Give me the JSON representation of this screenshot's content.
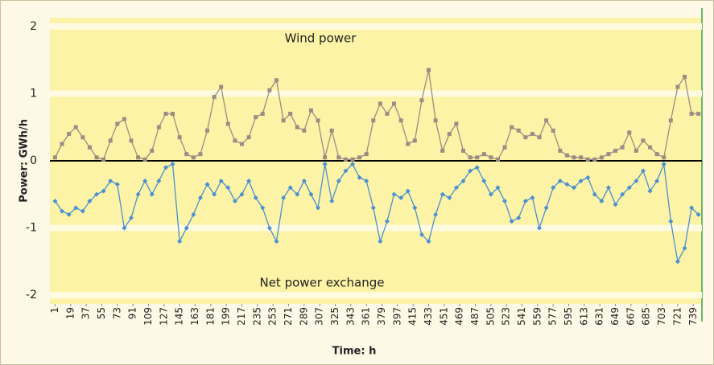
{
  "chart_data": {
    "type": "line",
    "annotations": [
      "Wind power",
      "Net power exchange"
    ],
    "xlabel": "Time: h",
    "ylabel": "Power: GWh/h",
    "x": [
      1,
      9,
      17,
      25,
      33,
      41,
      49,
      57,
      65,
      73,
      81,
      89,
      97,
      105,
      113,
      121,
      129,
      137,
      145,
      153,
      161,
      169,
      177,
      185,
      193,
      201,
      209,
      217,
      225,
      233,
      241,
      249,
      257,
      265,
      273,
      281,
      289,
      297,
      305,
      313,
      321,
      329,
      337,
      345,
      353,
      361,
      369,
      377,
      385,
      393,
      401,
      409,
      417,
      425,
      433,
      441,
      449,
      457,
      465,
      473,
      481,
      489,
      497,
      505,
      513,
      521,
      529,
      537,
      545,
      553,
      561,
      569,
      577,
      585,
      593,
      601,
      609,
      617,
      625,
      633,
      641,
      649,
      657,
      665,
      673,
      681,
      689,
      697,
      705,
      713,
      721,
      729,
      737,
      745
    ],
    "series": [
      {
        "name": "Wind power",
        "color": "#9c8c84",
        "marker": "square",
        "values": [
          0.05,
          0.25,
          0.4,
          0.5,
          0.35,
          0.2,
          0.05,
          0.02,
          0.3,
          0.55,
          0.62,
          0.3,
          0.05,
          0.02,
          0.15,
          0.5,
          0.7,
          0.7,
          0.35,
          0.1,
          0.05,
          0.1,
          0.45,
          0.95,
          1.1,
          0.55,
          0.3,
          0.25,
          0.35,
          0.65,
          0.7,
          1.05,
          1.2,
          0.6,
          0.7,
          0.5,
          0.45,
          0.75,
          0.6,
          0.05,
          0.45,
          0.05,
          0.02,
          0.02,
          0.05,
          0.1,
          0.6,
          0.85,
          0.7,
          0.85,
          0.6,
          0.25,
          0.3,
          0.9,
          1.35,
          0.6,
          0.15,
          0.4,
          0.55,
          0.15,
          0.05,
          0.05,
          0.1,
          0.05,
          0.02,
          0.2,
          0.5,
          0.45,
          0.35,
          0.4,
          0.35,
          0.6,
          0.45,
          0.15,
          0.08,
          0.05,
          0.05,
          0.02,
          0.02,
          0.05,
          0.1,
          0.15,
          0.2,
          0.42,
          0.15,
          0.3,
          0.2,
          0.1,
          0.05,
          0.6,
          1.1,
          1.25,
          0.7,
          0.7
        ]
      },
      {
        "name": "Net power exchange",
        "color": "#4a90d2",
        "marker": "diamond",
        "values": [
          -0.6,
          -0.75,
          -0.8,
          -0.7,
          -0.75,
          -0.6,
          -0.5,
          -0.45,
          -0.3,
          -0.35,
          -1.0,
          -0.85,
          -0.5,
          -0.3,
          -0.5,
          -0.3,
          -0.1,
          -0.05,
          -1.2,
          -1.0,
          -0.8,
          -0.55,
          -0.35,
          -0.5,
          -0.3,
          -0.4,
          -0.6,
          -0.5,
          -0.3,
          -0.55,
          -0.7,
          -1.0,
          -1.2,
          -0.55,
          -0.4,
          -0.5,
          -0.3,
          -0.5,
          -0.7,
          -0.05,
          -0.6,
          -0.3,
          -0.15,
          -0.05,
          -0.25,
          -0.3,
          -0.7,
          -1.2,
          -0.9,
          -0.5,
          -0.55,
          -0.45,
          -0.7,
          -1.1,
          -1.2,
          -0.8,
          -0.5,
          -0.55,
          -0.4,
          -0.3,
          -0.15,
          -0.1,
          -0.3,
          -0.5,
          -0.4,
          -0.6,
          -0.9,
          -0.85,
          -0.6,
          -0.55,
          -1.0,
          -0.7,
          -0.4,
          -0.3,
          -0.35,
          -0.4,
          -0.3,
          -0.25,
          -0.5,
          -0.6,
          -0.4,
          -0.65,
          -0.5,
          -0.4,
          -0.3,
          -0.15,
          -0.45,
          -0.3,
          -0.05,
          -0.9,
          -1.5,
          -1.3,
          -0.7,
          -0.8
        ]
      }
    ],
    "xlim": [
      -5,
      749
    ],
    "ylim": [
      -2.13,
      2.13
    ],
    "xticks": [
      1,
      19,
      37,
      55,
      73,
      91,
      109,
      127,
      145,
      163,
      181,
      199,
      217,
      235,
      253,
      271,
      289,
      307,
      325,
      343,
      361,
      379,
      397,
      415,
      433,
      451,
      469,
      487,
      505,
      523,
      541,
      559,
      577,
      595,
      613,
      631,
      649,
      667,
      685,
      703,
      721,
      739
    ],
    "yticks": [
      2,
      1,
      0,
      -1,
      -2
    ],
    "grid": true
  }
}
